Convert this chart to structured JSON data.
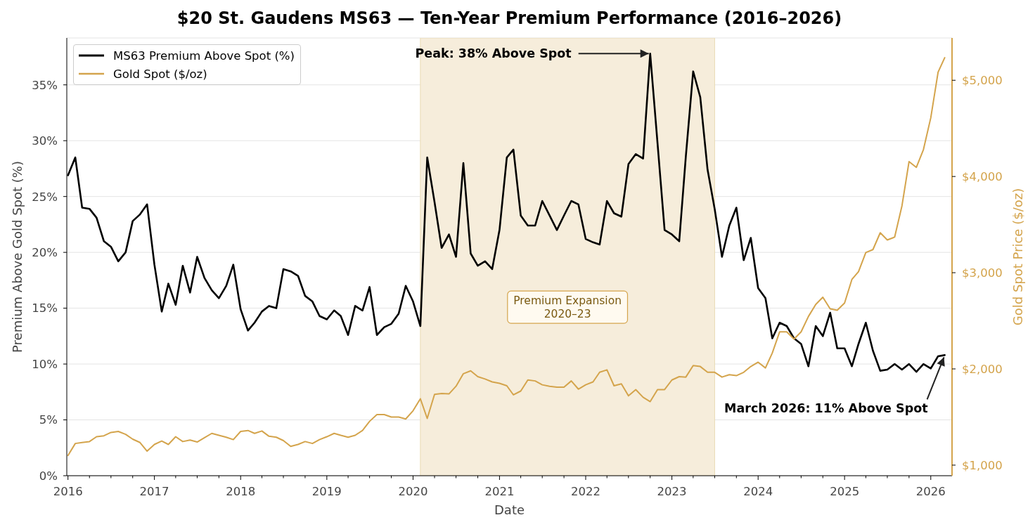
{
  "chart_data": {
    "type": "line",
    "title": "$20 St. Gaudens MS63 — Ten-Year Premium Performance (2016–2026)",
    "xlabel": "Date",
    "ylabel": "Premium Above Gold Spot (%)",
    "y2label": "Gold Spot Price ($/oz)",
    "x": [
      "2016-01",
      "2016-02",
      "2016-03",
      "2016-04",
      "2016-05",
      "2016-06",
      "2016-07",
      "2016-08",
      "2016-09",
      "2016-10",
      "2016-11",
      "2016-12",
      "2017-01",
      "2017-02",
      "2017-03",
      "2017-04",
      "2017-05",
      "2017-06",
      "2017-07",
      "2017-08",
      "2017-09",
      "2017-10",
      "2017-11",
      "2017-12",
      "2018-01",
      "2018-02",
      "2018-03",
      "2018-04",
      "2018-05",
      "2018-06",
      "2018-07",
      "2018-08",
      "2018-09",
      "2018-10",
      "2018-11",
      "2018-12",
      "2019-01",
      "2019-02",
      "2019-03",
      "2019-04",
      "2019-05",
      "2019-06",
      "2019-07",
      "2019-08",
      "2019-09",
      "2019-10",
      "2019-11",
      "2019-12",
      "2020-01",
      "2020-02",
      "2020-03",
      "2020-04",
      "2020-05",
      "2020-06",
      "2020-07",
      "2020-08",
      "2020-09",
      "2020-10",
      "2020-11",
      "2020-12",
      "2021-01",
      "2021-02",
      "2021-03",
      "2021-04",
      "2021-05",
      "2021-06",
      "2021-07",
      "2021-08",
      "2021-09",
      "2021-10",
      "2021-11",
      "2021-12",
      "2022-01",
      "2022-02",
      "2022-03",
      "2022-04",
      "2022-05",
      "2022-06",
      "2022-07",
      "2022-08",
      "2022-09",
      "2022-10",
      "2022-11",
      "2022-12",
      "2023-01",
      "2023-02",
      "2023-03",
      "2023-04",
      "2023-05",
      "2023-06",
      "2023-07",
      "2023-08",
      "2023-09",
      "2023-10",
      "2023-11",
      "2023-12",
      "2024-01",
      "2024-02",
      "2024-03",
      "2024-04",
      "2024-05",
      "2024-06",
      "2024-07",
      "2024-08",
      "2024-09",
      "2024-10",
      "2024-11",
      "2024-12",
      "2025-01",
      "2025-02",
      "2025-03",
      "2025-04",
      "2025-05",
      "2025-06",
      "2025-07",
      "2025-08",
      "2025-09",
      "2025-10",
      "2025-11",
      "2025-12",
      "2026-01",
      "2026-02",
      "2026-03"
    ],
    "series": [
      {
        "name": "MS63 Premium Above Spot (%)",
        "color": "#000000",
        "values": [
          26.9,
          28.5,
          24.0,
          23.9,
          23.1,
          21.0,
          20.5,
          19.2,
          20.0,
          22.8,
          23.4,
          24.3,
          18.9,
          14.7,
          17.2,
          15.3,
          18.8,
          16.4,
          19.6,
          17.7,
          16.6,
          15.9,
          17.0,
          18.9,
          14.9,
          13.0,
          13.7,
          14.7,
          15.2,
          15.0,
          18.5,
          18.3,
          17.9,
          16.1,
          15.6,
          14.3,
          14.0,
          14.8,
          14.3,
          12.6,
          15.2,
          14.8,
          16.9,
          12.6,
          13.3,
          13.6,
          14.5,
          17.0,
          15.6,
          13.4,
          28.5,
          24.5,
          20.4,
          21.6,
          19.6,
          28.0,
          19.9,
          18.8,
          19.2,
          18.5,
          22.0,
          28.5,
          29.2,
          23.3,
          22.4,
          22.4,
          24.6,
          23.3,
          22.0,
          23.3,
          24.6,
          24.3,
          21.2,
          20.9,
          20.7,
          24.6,
          23.5,
          23.2,
          27.9,
          28.8,
          28.4,
          37.8,
          29.8,
          22.0,
          21.6,
          21.0,
          28.6,
          36.2,
          33.9,
          27.4,
          23.9,
          19.6,
          22.4,
          24.0,
          19.3,
          21.3,
          16.8,
          15.9,
          12.3,
          13.7,
          13.4,
          12.3,
          11.8,
          9.8,
          13.4,
          12.5,
          14.6,
          11.4,
          11.4,
          9.8,
          11.8,
          13.7,
          11.2,
          9.4,
          9.5,
          10.0,
          9.5,
          10.0,
          9.3,
          10.0,
          9.6,
          10.7,
          10.8
        ]
      },
      {
        "name": "Gold Spot ($/oz)",
        "color": "#d4a44c",
        "axis": "y2",
        "values": [
          1100,
          1225,
          1235,
          1245,
          1295,
          1305,
          1340,
          1350,
          1320,
          1270,
          1235,
          1145,
          1215,
          1250,
          1215,
          1295,
          1245,
          1260,
          1240,
          1285,
          1330,
          1310,
          1290,
          1265,
          1350,
          1360,
          1330,
          1355,
          1300,
          1290,
          1255,
          1195,
          1215,
          1245,
          1225,
          1265,
          1295,
          1330,
          1310,
          1290,
          1310,
          1360,
          1455,
          1525,
          1525,
          1500,
          1500,
          1480,
          1565,
          1690,
          1485,
          1735,
          1745,
          1740,
          1820,
          1950,
          1980,
          1920,
          1895,
          1865,
          1850,
          1825,
          1730,
          1770,
          1885,
          1875,
          1835,
          1820,
          1810,
          1810,
          1875,
          1790,
          1835,
          1865,
          1965,
          1990,
          1825,
          1845,
          1720,
          1785,
          1705,
          1660,
          1785,
          1785,
          1885,
          1920,
          1915,
          2035,
          2025,
          1965,
          1965,
          1915,
          1940,
          1930,
          1965,
          2025,
          2070,
          2010,
          2165,
          2385,
          2385,
          2310,
          2385,
          2545,
          2670,
          2745,
          2625,
          2610,
          2685,
          2930,
          3010,
          3210,
          3240,
          3415,
          3340,
          3370,
          3695,
          4155,
          4095,
          4280,
          4610,
          5085,
          5235
        ]
      }
    ],
    "xlim": [
      "2015-12-27",
      "2026-04-01"
    ],
    "xticks": [
      "2016",
      {
        "value": "2016-04",
        "label": null
      },
      {
        "value": "2016-07",
        "label": null
      },
      {
        "value": "2016-10",
        "label": null
      },
      "2017",
      {
        "value": "2017-04",
        "label": null
      },
      {
        "value": "2017-07",
        "label": null
      },
      {
        "value": "2017-10",
        "label": null
      },
      "2018",
      {
        "value": "2018-04",
        "label": null
      },
      {
        "value": "2018-07",
        "label": null
      },
      {
        "value": "2018-10",
        "label": null
      },
      "2019",
      {
        "value": "2019-04",
        "label": null
      },
      {
        "value": "2019-07",
        "label": null
      },
      {
        "value": "2019-10",
        "label": null
      },
      "2020",
      {
        "value": "2020-04",
        "label": null
      },
      {
        "value": "2020-07",
        "label": null
      },
      {
        "value": "2020-10",
        "label": null
      },
      "2021",
      {
        "value": "2021-04",
        "label": null
      },
      {
        "value": "2021-07",
        "label": null
      },
      {
        "value": "2021-10",
        "label": null
      },
      "2022",
      {
        "value": "2022-04",
        "label": null
      },
      {
        "value": "2022-07",
        "label": null
      },
      {
        "value": "2022-10",
        "label": null
      },
      "2023",
      {
        "value": "2023-04",
        "label": null
      },
      {
        "value": "2023-07",
        "label": null
      },
      {
        "value": "2023-10",
        "label": null
      },
      "2024",
      {
        "value": "2024-04",
        "label": null
      },
      {
        "value": "2024-07",
        "label": null
      },
      {
        "value": "2024-10",
        "label": null
      },
      "2025",
      {
        "value": "2025-04",
        "label": null
      },
      {
        "value": "2025-07",
        "label": null
      },
      {
        "value": "2025-10",
        "label": null
      },
      "2026"
    ],
    "ylim": [
      0,
      39.2
    ],
    "yticks": [
      {
        "value": 0,
        "label": "0%"
      },
      {
        "value": 5,
        "label": "5%"
      },
      {
        "value": 10,
        "label": "10%"
      },
      {
        "value": 15,
        "label": "15%"
      },
      {
        "value": 20,
        "label": "20%"
      },
      {
        "value": 25,
        "label": "25%"
      },
      {
        "value": 30,
        "label": "30%"
      },
      {
        "value": 35,
        "label": "35%"
      }
    ],
    "y2lim": [
      890,
      5440
    ],
    "y2ticks": [
      {
        "value": 1000,
        "label": "$1,000"
      },
      {
        "value": 2000,
        "label": "$2,000"
      },
      {
        "value": 3000,
        "label": "$3,000"
      },
      {
        "value": 4000,
        "label": "$4,000"
      },
      {
        "value": 5000,
        "label": "$5,000"
      }
    ],
    "bands": [
      {
        "axis": "x",
        "from": "2020-02",
        "to": "2023-07",
        "label": "Premium Expansion\n2020–23",
        "color": "#f6eddb"
      }
    ],
    "annotations": [
      {
        "text": "Peak: 38% Above Spot",
        "x": "2022-10",
        "y": 37.8
      },
      {
        "text": "March 2026: 11% Above Spot",
        "x": "2026-03",
        "y": 10.8
      }
    ],
    "grid": "y",
    "legend": "top left",
    "marker": "none",
    "line_style": "solid"
  }
}
